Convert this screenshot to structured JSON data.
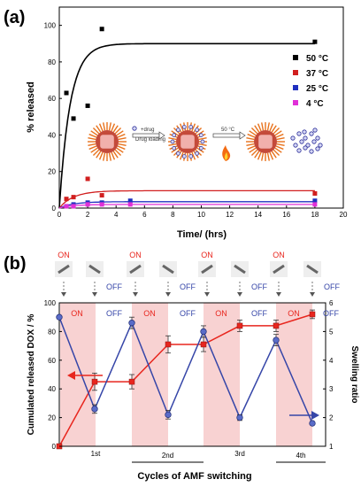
{
  "chart_data": [
    {
      "panel": "(a)",
      "type": "scatter",
      "xlabel": "Time/ (hrs)",
      "ylabel": "% released",
      "xlim": [
        0,
        20
      ],
      "ylim": [
        0,
        110
      ],
      "xticks": [
        0,
        2,
        4,
        6,
        8,
        10,
        12,
        14,
        16,
        18,
        20
      ],
      "yticks": [
        0,
        20,
        40,
        60,
        80,
        100
      ],
      "legend_position": "top-right",
      "series": [
        {
          "name": "50 °C",
          "color": "#000000",
          "x": [
            0.5,
            1,
            2,
            3,
            18
          ],
          "y": [
            63,
            49,
            56,
            98,
            91
          ],
          "fit_plateau": 90
        },
        {
          "name": "37 °C",
          "color": "#d11f1f",
          "x": [
            0.5,
            1,
            2,
            3,
            18
          ],
          "y": [
            5,
            6,
            16,
            7,
            8
          ],
          "fit_plateau": 9.5
        },
        {
          "name": "25 °C",
          "color": "#2030c0",
          "x": [
            0.5,
            1,
            2,
            3,
            5,
            18
          ],
          "y": [
            1,
            2,
            3,
            3,
            4,
            4
          ],
          "fit_plateau": 3.5
        },
        {
          "name": "4 °C",
          "color": "#e030d8",
          "x": [
            0.5,
            1,
            2,
            3,
            5,
            18
          ],
          "y": [
            1,
            1,
            2,
            2,
            2,
            2
          ],
          "fit_plateau": 2
        }
      ],
      "inset_labels": [
        "+drug",
        "Drug loading",
        "50 °C"
      ]
    },
    {
      "panel": "(b)",
      "type": "line",
      "xlabel": "Cycles of AMF switching",
      "ylabel": "Cumulated released DOX / %",
      "ylabel_right": "Swelling ratio",
      "ylim": [
        0,
        100
      ],
      "yticks": [
        0,
        20,
        40,
        60,
        80,
        100
      ],
      "ylim_right": [
        1,
        6
      ],
      "yticks_right": [
        1,
        2,
        3,
        4,
        5,
        6
      ],
      "cycle_labels": [
        "1st",
        "2nd",
        "3rd",
        "4th"
      ],
      "state_labels": [
        "ON",
        "OFF",
        "ON",
        "OFF",
        "ON",
        "OFF",
        "ON",
        "OFF"
      ],
      "states": [
        "ON",
        "OFF",
        "ON",
        "OFF",
        "ON",
        "OFF",
        "ON",
        "OFF"
      ],
      "x": [
        0,
        1,
        2,
        3,
        4,
        5,
        6,
        7,
        8
      ],
      "released": [
        0,
        45,
        45,
        71,
        71,
        84,
        84,
        92
      ],
      "released_err": [
        0,
        6,
        5,
        6,
        5,
        4,
        4,
        3
      ],
      "swelling": [
        5.5,
        2.3,
        5.3,
        2.1,
        5.0,
        2.0,
        4.7,
        1.8
      ],
      "swelling_err": [
        0,
        0.15,
        0.2,
        0.15,
        0.2,
        0.1,
        0.2,
        0.05
      ],
      "released_color": "#e8261e",
      "swelling_color": "#3646a8",
      "band_color": "#f8d2d2",
      "labels_on_left": [
        "OFF",
        "OFF",
        "OFF",
        "OFF"
      ]
    }
  ],
  "panel_labels": [
    "(a)",
    "(b)"
  ]
}
